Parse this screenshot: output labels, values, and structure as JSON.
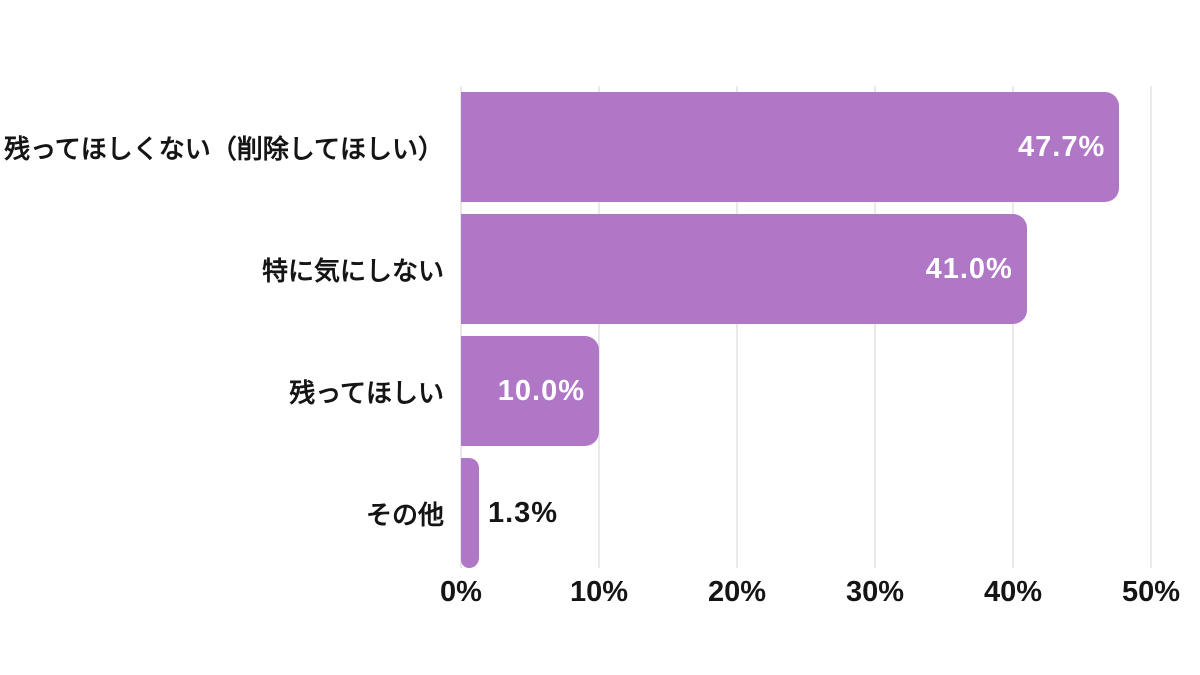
{
  "chart_data": {
    "type": "bar",
    "orientation": "horizontal",
    "title": "",
    "categories": [
      "残ってほしくない（削除してほしい）",
      "特に気にしない",
      "残ってほしい",
      "その他"
    ],
    "values": [
      47.7,
      41.0,
      10.0,
      1.3
    ],
    "value_labels": [
      "47.7%",
      "41.0%",
      "10.0%",
      "1.3%"
    ],
    "label_inside": [
      true,
      true,
      true,
      false
    ],
    "x_ticks": [
      "0%",
      "10%",
      "20%",
      "30%",
      "40%",
      "50%"
    ],
    "xlim": [
      0,
      50
    ],
    "grid": true,
    "legend": false,
    "colors": {
      "bar": "#b077c6",
      "grid": "#e9e9e9",
      "text": "#151515",
      "value_inside": "#ffffff",
      "background": "#ffffff"
    }
  }
}
